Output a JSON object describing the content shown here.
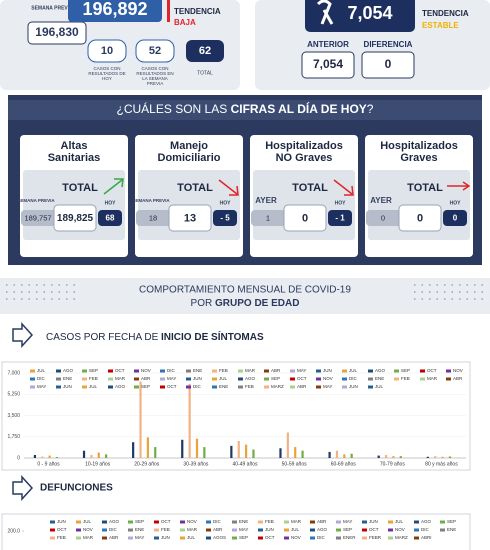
{
  "summary_cases": {
    "prev_label": "SEMANA PREVIA",
    "prev_value": "196,830",
    "current": "196,892",
    "trend_label": "TENDENCIA",
    "trend": "BAJA",
    "today": {
      "value": "10",
      "label": "CASOS CON RESULTADOS DE HOY"
    },
    "week": {
      "value": "52",
      "label": "CASOS CON RESULTADOS EN LA SEMANA PREVIA"
    },
    "total": {
      "value": "62",
      "label": "TOTAL"
    }
  },
  "summary_deaths": {
    "current": "7,054",
    "trend_label": "TENDENCIA",
    "trend": "ESTABLE",
    "previous_label": "ANTERIOR",
    "previous": "7,054",
    "difference_label": "DIFERENCIA",
    "difference": "0"
  },
  "today_panel": {
    "title_pre": "¿CUÁLES SON LAS ",
    "title_bold": "CIFRAS AL DÍA DE HOY",
    "title_post": "?",
    "cards": [
      {
        "title_lines": [
          "Altas",
          "Sanitarias"
        ],
        "total_label": "TOTAL",
        "prev_label": "SEMANA PREVIA",
        "prev": "189,757",
        "current": "189,825",
        "today_label": "HOY",
        "today": "68",
        "arrow": "up",
        "arrow_color": "#3aa64a"
      },
      {
        "title_lines": [
          "Manejo",
          "Domiciliario"
        ],
        "total_label": "TOTAL",
        "prev_label": "SEMANA PREVIA",
        "prev": "18",
        "current": "13",
        "today_label": "HOY",
        "today": "- 5",
        "arrow": "down",
        "arrow_color": "#e0262b"
      },
      {
        "title_lines": [
          "Hospitalizados",
          "NO Graves"
        ],
        "total_label": "TOTAL",
        "prev_label": "AYER",
        "prev": "1",
        "current": "0",
        "today_label": "HOY",
        "today": "- 1",
        "arrow": "down",
        "arrow_color": "#e0262b"
      },
      {
        "title_lines": [
          "Hospitalizados",
          "Graves"
        ],
        "total_label": "TOTAL",
        "prev_label": "AYER",
        "prev": "0",
        "current": "0",
        "today_label": "HOY",
        "today": "0",
        "arrow": "right",
        "arrow_color": "#e0262b"
      }
    ]
  },
  "banner": {
    "line1": "COMPORTAMIENTO MENSUAL DE COVID-19",
    "line2_pre": "POR ",
    "line2_bold": "GRUPO DE EDAD"
  },
  "section_cases": {
    "pre": "CASOS POR FECHA DE ",
    "bold": "INICIO DE SÍNTOMAS"
  },
  "section_deaths": {
    "bold": "DEFUNCIONES"
  },
  "chart_data": [
    {
      "type": "bar",
      "categories": [
        "0 - 9 años",
        "10-19 años",
        "20-29 años",
        "30-39 años",
        "40-49 años",
        "50-59 años",
        "60-69 años",
        "70-79 años",
        "80 y más años"
      ],
      "ylim": [
        0,
        7000
      ],
      "yticks": [
        0,
        {
          "value": 1750,
          "label": "1,750"
        },
        {
          "value": 3500,
          "label": "3,500"
        },
        {
          "value": 5250,
          "label": "5,250"
        },
        {
          "value": 7000,
          "label": "7,000"
        }
      ],
      "grid": true,
      "legend": [
        "JUL",
        "AGO",
        "SEP",
        "OCT",
        "NOV",
        "DIC",
        "ENE",
        "FEB",
        "MAR",
        "ABR",
        "MAY",
        "JUN",
        "JUL",
        "AGO",
        "SEP",
        "OCT",
        "NOV",
        "DIC",
        "ENE",
        "FEB",
        "MAR",
        "ABR",
        "MAY",
        "JUN",
        "JUL",
        "AGO",
        "SEP",
        "OCT",
        "NOV",
        "DIC",
        "ENE",
        "FEB",
        "MAR",
        "ABR",
        "MAY",
        "JUN",
        "JUL",
        "AGO",
        "SEP",
        "OCT",
        "DIC",
        "ENE",
        "FEB",
        "MARZ",
        "ABR",
        "MAY",
        "JUN",
        "JUL"
      ],
      "legend_colors": [
        "#e8a33d",
        "#1f4e79",
        "#70ad47",
        "#c00000",
        "#7030a0",
        "#2e75b6",
        "#7f7f7f",
        "#f4b183",
        "#a9d18e",
        "#843c0c",
        "#b4a7d6",
        "#255e91"
      ],
      "series": [
        {
          "name": "DIC",
          "color": "#1f3864",
          "values": [
            250,
            600,
            1300,
            1500,
            1000,
            800,
            500,
            200,
            100
          ]
        },
        {
          "name": "ENE",
          "color": "#f4b183",
          "values": [
            120,
            250,
            6300,
            6100,
            1400,
            2100,
            600,
            250,
            150
          ]
        },
        {
          "name": "JUL",
          "color": "#e8a33d",
          "values": [
            200,
            450,
            1700,
            1600,
            1100,
            900,
            300,
            150,
            100
          ]
        },
        {
          "name": "AGO",
          "color": "#70ad47",
          "values": [
            80,
            300,
            900,
            900,
            700,
            600,
            350,
            150,
            120
          ]
        }
      ]
    },
    {
      "type": "bar",
      "ylim": [
        0,
        200
      ],
      "yticks": [
        {
          "value": 200,
          "label": "200.0"
        }
      ],
      "grid": false,
      "legend": [
        "JUN",
        "JUL",
        "AGO",
        "SEP",
        "OCT",
        "NOV",
        "DIC",
        "ENE",
        "FEB",
        "MAR",
        "ABR",
        "MAY",
        "JUN",
        "JUL",
        "AGO",
        "SEP",
        "OCT",
        "NOV",
        "DIC",
        "ENE",
        "FEB",
        "MAR",
        "ABR",
        "MAY",
        "JUN",
        "JUL",
        "AGO",
        "SEP",
        "OCT",
        "NOV",
        "DIC",
        "ENE",
        "FEB",
        "MAR",
        "ABR",
        "MAY",
        "JUN",
        "JUL",
        "AGOS",
        "SEP",
        "OCT",
        "NOV",
        "DIC",
        "ENER",
        "FEBR",
        "MARZ",
        "ABRI"
      ],
      "legend_colors": [
        "#255e91",
        "#e8a33d",
        "#1f4e79",
        "#70ad47",
        "#c00000",
        "#7030a0",
        "#2e75b6",
        "#7f7f7f",
        "#f4b183",
        "#a9d18e",
        "#843c0c",
        "#b4a7d6"
      ]
    }
  ]
}
